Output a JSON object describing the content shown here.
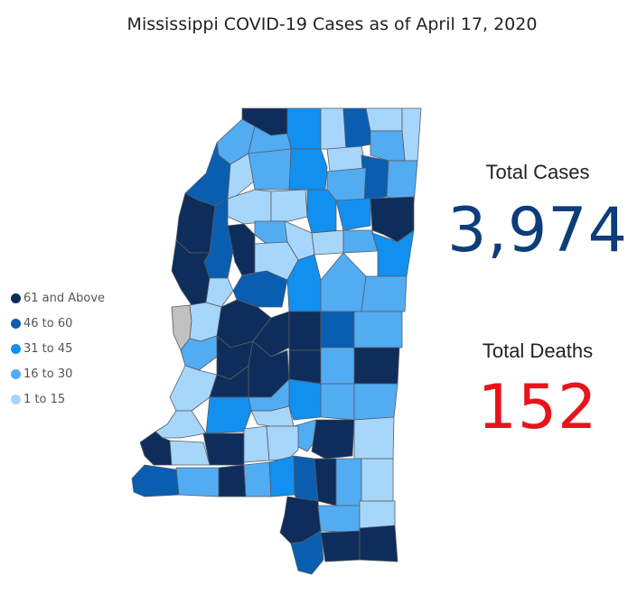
{
  "title": "Mississippi COVID-19 Cases as of April 17, 2020",
  "legend": [
    {
      "label": "61 and Above",
      "color": "#0f2d5a"
    },
    {
      "label": "46 to 60",
      "color": "#0a5eb0"
    },
    {
      "label": "31 to 45",
      "color": "#1190f0"
    },
    {
      "label": "16 to 30",
      "color": "#52acf2"
    },
    {
      "label": "1 to 15",
      "color": "#a7d6fb"
    }
  ],
  "no_data_color": "#c0c0c0",
  "stats": {
    "cases_label": "Total Cases",
    "cases_value": "3,974",
    "cases_color": "#0d3d7a",
    "deaths_label": "Total Deaths",
    "deaths_value": "152",
    "deaths_color": "#e8131b"
  }
}
